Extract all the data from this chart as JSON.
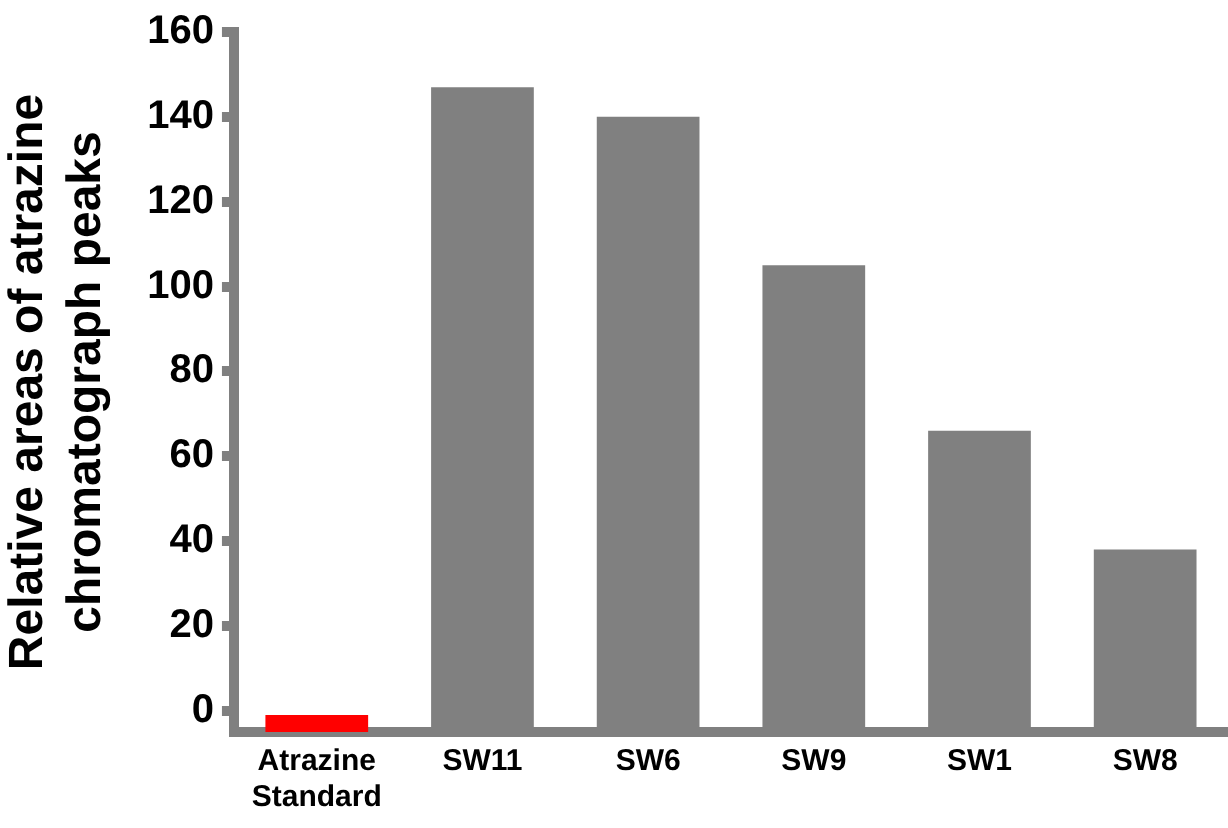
{
  "chart_data": {
    "type": "bar",
    "ylabel": "Relative areas of atrazine chromatograph peaks",
    "categories": [
      "Atrazine Standard",
      "SW11",
      "SW6",
      "SW9",
      "SW1",
      "SW8"
    ],
    "base": [
      -5,
      -5,
      -5,
      -5,
      -5,
      -5
    ],
    "values": [
      4,
      152,
      145,
      110,
      71,
      43
    ],
    "colors": [
      "#ff0000",
      "#808080",
      "#808080",
      "#808080",
      "#808080",
      "#808080"
    ],
    "ylim": [
      -5,
      160
    ],
    "yticks": [
      0,
      20,
      40,
      60,
      80,
      100,
      120,
      140,
      160
    ],
    "grid": false,
    "legend": false
  }
}
